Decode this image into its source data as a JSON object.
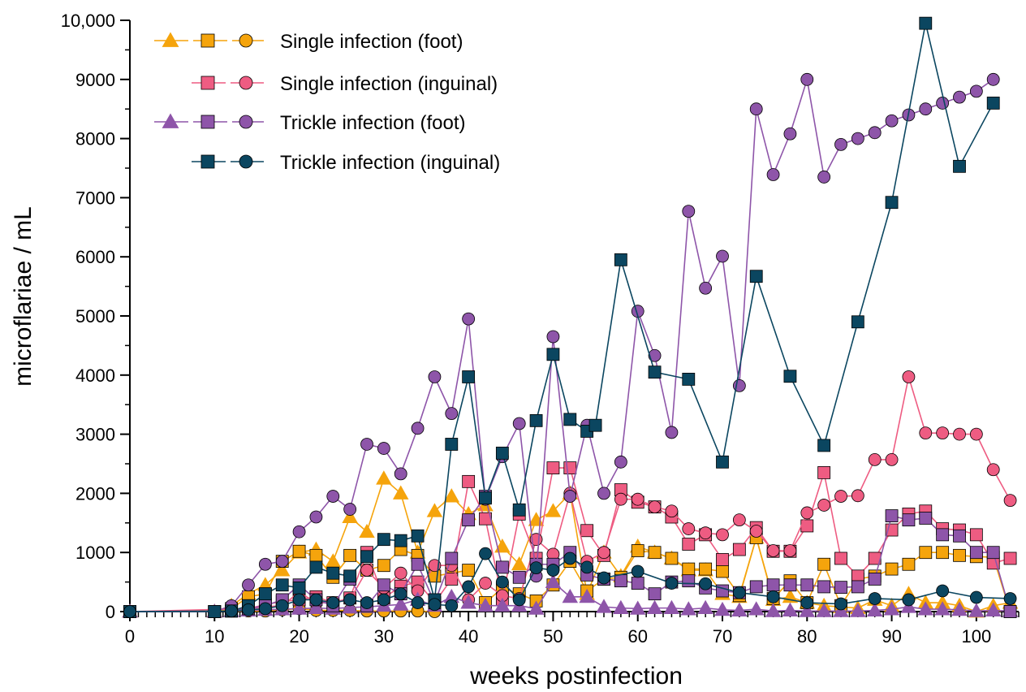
{
  "chart_data": {
    "type": "line",
    "xlabel": "weeks postinfection",
    "ylabel": "microflariae / mL",
    "xlim": [
      0,
      105
    ],
    "ylim": [
      0,
      10000
    ],
    "x_ticks": [
      "0",
      "10",
      "20",
      "30",
      "40",
      "50",
      "60",
      "70",
      "80",
      "90",
      "100"
    ],
    "y_ticks": [
      "0",
      "1000",
      "2000",
      "3000",
      "4000",
      "5000",
      "6000",
      "7000",
      "8000",
      "9000",
      "10,000"
    ],
    "x_tick_values": [
      0,
      10,
      20,
      30,
      40,
      50,
      60,
      70,
      80,
      90,
      100
    ],
    "y_tick_values": [
      0,
      1000,
      2000,
      3000,
      4000,
      5000,
      6000,
      7000,
      8000,
      9000,
      10000
    ],
    "legend": [
      {
        "label": "Single infection (foot)",
        "color": "#F5A40C",
        "markers": [
          "triangle",
          "square",
          "circle"
        ]
      },
      {
        "label": "Single infection (inguinal)",
        "color": "#EE5C82",
        "markers": [
          "square",
          "circle"
        ]
      },
      {
        "label": "Trickle infection (foot)",
        "color": "#8E55A9",
        "markers": [
          "triangle",
          "square",
          "circle"
        ]
      },
      {
        "label": "Trickle infection (inguinal)",
        "color": "#0B4660",
        "markers": [
          "square",
          "circle"
        ]
      }
    ],
    "series": [
      {
        "group": "Single infection (foot)",
        "marker": "triangle",
        "color": "#F5A40C",
        "x": [
          0,
          10,
          12,
          14,
          16,
          18,
          20,
          22,
          24,
          26,
          28,
          30,
          32,
          34,
          36,
          38,
          40,
          42,
          44,
          46,
          48,
          50,
          52,
          54,
          56,
          58,
          60,
          62,
          64,
          66,
          68,
          70,
          72,
          74,
          76,
          78,
          80,
          82,
          84,
          86,
          88,
          90,
          92,
          94,
          96,
          98,
          100,
          102,
          104
        ],
        "y": [
          0,
          0,
          100,
          300,
          450,
          700,
          1000,
          1050,
          850,
          1600,
          1350,
          2250,
          2000,
          1000,
          1700,
          1950,
          1650,
          1800,
          1100,
          800,
          1550,
          1700,
          2000,
          300,
          1000,
          600,
          1100,
          1000,
          900,
          700,
          700,
          300,
          250,
          1250,
          200,
          250,
          150,
          100,
          80,
          60,
          200,
          100,
          300,
          150,
          150,
          100,
          0,
          100,
          150
        ]
      },
      {
        "group": "Single infection (foot)",
        "marker": "square",
        "color": "#F5A40C",
        "x": [
          0,
          10,
          12,
          14,
          16,
          18,
          20,
          22,
          24,
          26,
          28,
          30,
          32,
          34,
          36,
          38,
          40,
          42,
          44,
          46,
          48,
          50,
          52,
          54,
          56,
          58,
          60,
          62,
          64,
          66,
          68,
          70,
          72,
          74,
          76,
          78,
          80,
          82,
          84,
          86,
          88,
          90,
          92,
          94,
          96,
          98,
          100,
          102,
          104
        ],
        "y": [
          0,
          0,
          50,
          250,
          300,
          850,
          1020,
          950,
          580,
          950,
          700,
          780,
          1050,
          950,
          600,
          650,
          700,
          150,
          400,
          300,
          180,
          450,
          850,
          350,
          550,
          580,
          1030,
          1000,
          900,
          720,
          720,
          680,
          270,
          1250,
          220,
          520,
          150,
          800,
          100,
          550,
          600,
          720,
          800,
          1000,
          1000,
          950,
          930,
          920,
          0
        ]
      },
      {
        "group": "Single infection (foot)",
        "marker": "circle",
        "color": "#F5A40C",
        "x": [
          0,
          12,
          14,
          16,
          18,
          20,
          22,
          24,
          26,
          28,
          30,
          32,
          34,
          36
        ],
        "y": [
          0,
          10,
          10,
          10,
          30,
          50,
          20,
          20,
          20,
          10,
          10,
          10,
          10,
          0
        ]
      },
      {
        "group": "Single infection (inguinal)",
        "marker": "square",
        "color": "#EE5C82",
        "x": [
          0,
          10,
          12,
          14,
          16,
          18,
          20,
          22,
          24,
          26,
          28,
          30,
          32,
          34,
          36,
          38,
          40,
          42,
          44,
          46,
          48,
          50,
          52,
          54,
          56,
          58,
          60,
          62,
          64,
          66,
          68,
          70,
          72,
          74,
          76,
          78,
          80,
          82,
          84,
          86,
          88,
          90,
          92,
          94,
          96,
          98,
          100,
          102,
          104
        ],
        "y": [
          0,
          0,
          10,
          50,
          120,
          170,
          200,
          250,
          150,
          230,
          1000,
          230,
          430,
          500,
          150,
          550,
          2200,
          1570,
          200,
          1650,
          900,
          2430,
          2430,
          1370,
          950,
          2060,
          1850,
          1770,
          1600,
          1140,
          1300,
          880,
          1050,
          1420,
          1020,
          1020,
          1450,
          2350,
          900,
          600,
          900,
          1380,
          1650,
          1700,
          1400,
          1380,
          1300,
          820,
          900
        ]
      },
      {
        "group": "Single infection (inguinal)",
        "marker": "circle",
        "color": "#EE5C82",
        "x": [
          0,
          14,
          16,
          18,
          20,
          22,
          24,
          26,
          28,
          30,
          32,
          34,
          36,
          38,
          40,
          42,
          44,
          46,
          48,
          50,
          52,
          54,
          56,
          58,
          60,
          62,
          64,
          66,
          68,
          70,
          72,
          74,
          76,
          78,
          80,
          82,
          84,
          86,
          88,
          90,
          92,
          94,
          96,
          98,
          100,
          102,
          104
        ],
        "y": [
          0,
          50,
          80,
          100,
          330,
          150,
          150,
          200,
          700,
          400,
          650,
          350,
          780,
          780,
          200,
          480,
          270,
          220,
          1220,
          970,
          2000,
          850,
          1000,
          1900,
          1900,
          1770,
          1700,
          1400,
          1330,
          1300,
          1550,
          1360,
          1030,
          1030,
          1670,
          1800,
          1950,
          1960,
          2570,
          2570,
          3970,
          3020,
          3020,
          3000,
          3000,
          2400,
          1880
        ]
      },
      {
        "group": "Trickle infection (foot)",
        "marker": "triangle",
        "color": "#8E55A9",
        "x": [
          0,
          10,
          12,
          14,
          16,
          18,
          20,
          22,
          24,
          26,
          28,
          30,
          32,
          34,
          36,
          38,
          40,
          42,
          44,
          46,
          48,
          50,
          52,
          54,
          56,
          58,
          60,
          62,
          64,
          66,
          68,
          70,
          72,
          74,
          76,
          78,
          80,
          82,
          84,
          86,
          88,
          90,
          92,
          94,
          96,
          98,
          100,
          102,
          104
        ],
        "y": [
          0,
          0,
          10,
          20,
          30,
          40,
          50,
          60,
          50,
          70,
          80,
          100,
          120,
          200,
          100,
          250,
          150,
          100,
          100,
          100,
          50,
          500,
          250,
          250,
          80,
          60,
          50,
          60,
          60,
          40,
          60,
          30,
          20,
          40,
          10,
          20,
          10,
          10,
          10,
          10,
          20,
          40,
          80,
          40,
          40,
          30,
          10,
          20,
          10
        ]
      },
      {
        "group": "Trickle infection (foot)",
        "marker": "square",
        "color": "#8E55A9",
        "x": [
          0,
          10,
          12,
          14,
          16,
          18,
          20,
          22,
          24,
          26,
          28,
          30,
          32,
          34,
          36,
          38,
          40,
          42,
          44,
          46,
          48,
          50,
          52,
          54,
          56,
          58,
          60,
          62,
          64,
          66,
          68,
          70,
          72,
          74,
          76,
          78,
          80,
          82,
          84,
          86,
          88,
          90,
          92,
          94,
          96,
          98,
          100,
          102,
          104
        ],
        "y": [
          0,
          0,
          10,
          50,
          100,
          200,
          450,
          200,
          100,
          550,
          100,
          450,
          300,
          800,
          150,
          900,
          1550,
          1950,
          750,
          580,
          800,
          800,
          1000,
          620,
          550,
          520,
          480,
          300,
          500,
          520,
          400,
          350,
          320,
          420,
          450,
          450,
          450,
          420,
          410,
          420,
          550,
          1620,
          1550,
          1580,
          1300,
          1280,
          1000,
          1000,
          0
        ]
      },
      {
        "group": "Trickle infection (foot)",
        "marker": "circle",
        "color": "#8E55A9",
        "x": [
          0,
          10,
          12,
          14,
          16,
          18,
          20,
          22,
          24,
          26,
          28,
          30,
          32,
          34,
          36,
          38,
          40,
          42,
          44,
          46,
          48,
          50,
          52,
          54,
          56,
          58,
          60,
          62,
          64,
          66,
          68,
          70,
          72,
          74,
          76,
          78,
          80,
          82,
          84,
          86,
          88,
          90,
          92,
          94,
          96,
          98,
          100,
          102
        ],
        "y": [
          0,
          0,
          100,
          450,
          800,
          850,
          1350,
          1600,
          1950,
          1730,
          2830,
          2760,
          2330,
          3100,
          3970,
          3350,
          4950,
          1900,
          2620,
          3180,
          600,
          4650,
          1950,
          3150,
          2000,
          2530,
          5080,
          4330,
          3030,
          6770,
          5470,
          6010,
          3820,
          8500,
          7390,
          8080,
          9000,
          7350,
          7900,
          8000,
          8100,
          8300,
          8400,
          8500,
          8600,
          8700,
          8800,
          9000
        ]
      },
      {
        "group": "Trickle infection (inguinal)",
        "marker": "square",
        "color": "#0B4660",
        "x": [
          0,
          10,
          12,
          14,
          16,
          18,
          20,
          22,
          24,
          26,
          28,
          30,
          32,
          34,
          36,
          38,
          40,
          42,
          44,
          46,
          48,
          50,
          52,
          54,
          55,
          58,
          62,
          66,
          70,
          74,
          78,
          82,
          86,
          90,
          94,
          98,
          102
        ],
        "y": [
          0,
          0,
          10,
          100,
          300,
          450,
          400,
          750,
          650,
          600,
          930,
          1220,
          1200,
          1280,
          200,
          2830,
          3970,
          1920,
          2680,
          1720,
          3230,
          4350,
          3250,
          3050,
          3150,
          5950,
          4050,
          3930,
          2530,
          5670,
          3980,
          2810,
          4900,
          6920,
          9950,
          7530,
          8600
        ]
      },
      {
        "group": "Trickle infection (inguinal)",
        "marker": "circle",
        "color": "#0B4660",
        "x": [
          0,
          12,
          14,
          16,
          18,
          20,
          22,
          24,
          26,
          28,
          30,
          32,
          34,
          36,
          38,
          40,
          42,
          44,
          46,
          48,
          50,
          52,
          54,
          56,
          60,
          64,
          68,
          72,
          76,
          80,
          84,
          88,
          92,
          96,
          100,
          104
        ],
        "y": [
          0,
          10,
          30,
          50,
          100,
          200,
          200,
          150,
          200,
          150,
          200,
          300,
          150,
          120,
          100,
          420,
          980,
          500,
          200,
          740,
          700,
          900,
          750,
          570,
          680,
          480,
          470,
          320,
          250,
          150,
          130,
          220,
          200,
          350,
          240,
          220
        ]
      }
    ]
  }
}
